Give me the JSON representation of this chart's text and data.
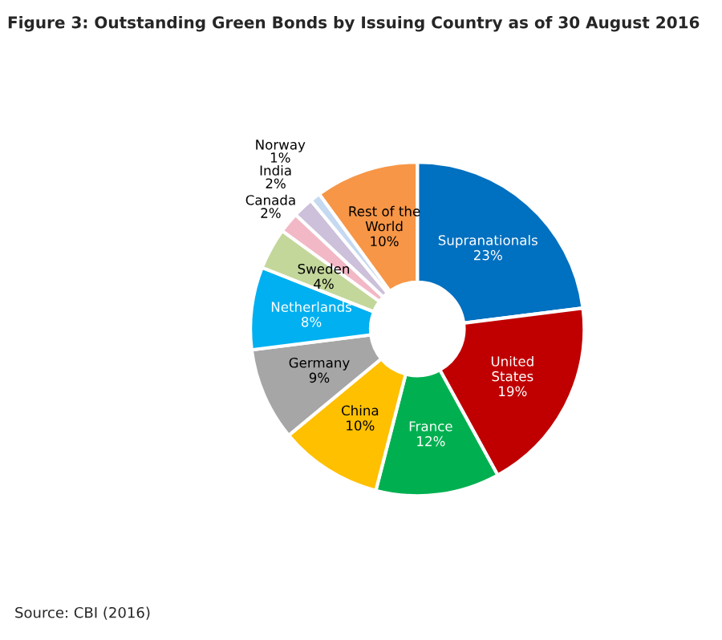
{
  "chart_data": {
    "type": "donut",
    "title": "Figure 3: Outstanding Green Bonds by Issuing Country as of 30 August 2016",
    "categories": [
      "Supranationals",
      "United States",
      "France",
      "China",
      "Germany",
      "Netherlands",
      "Sweden",
      "Canada",
      "India",
      "Norway",
      "Rest of the World"
    ],
    "values": [
      23,
      19,
      12,
      10,
      9,
      8,
      4,
      2,
      2,
      1,
      10
    ],
    "value_labels": [
      "23%",
      "19%",
      "12%",
      "10%",
      "9%",
      "8%",
      "4%",
      "2%",
      "2%",
      "1%",
      "10%"
    ],
    "colors": [
      "#0070c0",
      "#c00000",
      "#00b050",
      "#ffc000",
      "#a6a6a6",
      "#00b0f0",
      "#c4d79b",
      "#f2b8c6",
      "#ccc0da",
      "#c5d9f1",
      "#f79646"
    ],
    "annotations": [
      "Source: CBI (2016)"
    ]
  }
}
